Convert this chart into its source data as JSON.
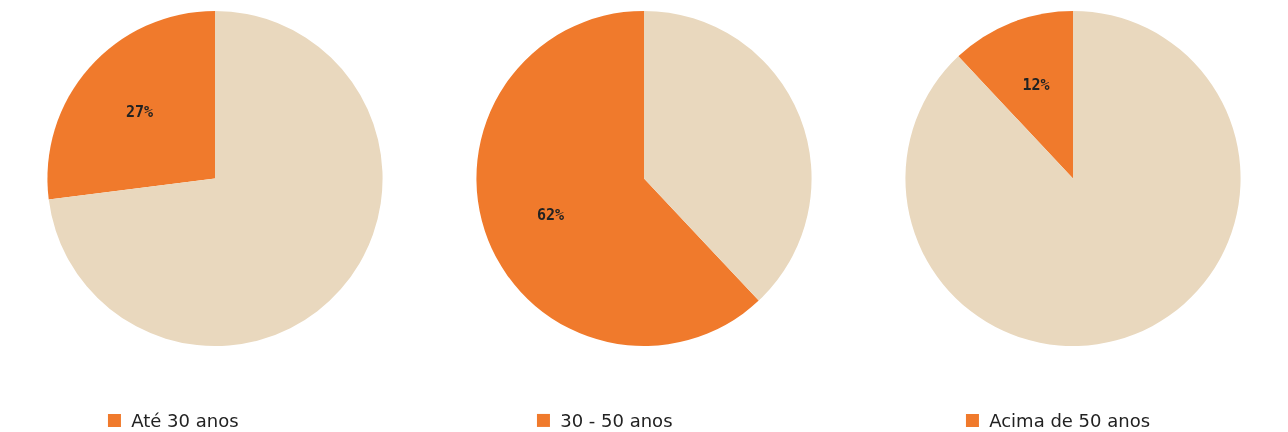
{
  "chart_data": [
    {
      "type": "pie",
      "categories": [
        "Até 30 anos",
        null
      ],
      "values": [
        27,
        73
      ],
      "colors": [
        "#f07a2c",
        "#e9d8be"
      ],
      "value_labels": [
        "27%",
        null
      ],
      "legend": "bottom"
    },
    {
      "type": "pie",
      "categories": [
        "30 - 50 anos",
        null
      ],
      "values": [
        62,
        38
      ],
      "colors": [
        "#f07a2c",
        "#e9d8be"
      ],
      "value_labels": [
        "62%",
        null
      ],
      "legend": "bottom"
    },
    {
      "type": "pie",
      "categories": [
        "Acima de 50 anos",
        null
      ],
      "values": [
        12,
        88
      ],
      "colors": [
        "#f07a2c",
        "#e9d8be"
      ],
      "value_labels": [
        "12%",
        null
      ],
      "legend": "bottom"
    }
  ]
}
